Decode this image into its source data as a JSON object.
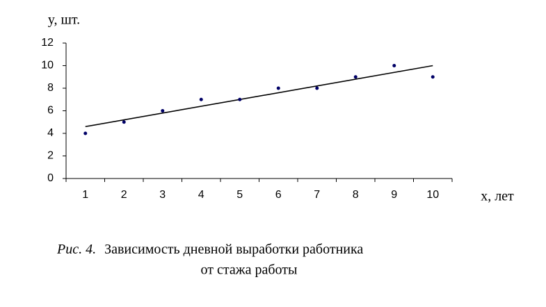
{
  "chart_data": {
    "type": "scatter",
    "y_label": "y, шт.",
    "x_label": "x, лет",
    "caption_prefix": "Рис. 4.",
    "caption_line1": "Зависимость дневной выработки  работника",
    "caption_line2": "от стажа работы",
    "x": [
      1,
      2,
      3,
      4,
      5,
      6,
      7,
      8,
      9,
      10
    ],
    "values": [
      4,
      5,
      6,
      7,
      7,
      8,
      8,
      9,
      10,
      9
    ],
    "color": "#000066",
    "trendline": {
      "x": [
        1,
        10
      ],
      "values": [
        4.6,
        10
      ],
      "color": "#000000"
    },
    "ylim": [
      0,
      12
    ],
    "yticks": [
      0,
      2,
      4,
      6,
      8,
      10,
      12
    ]
  }
}
